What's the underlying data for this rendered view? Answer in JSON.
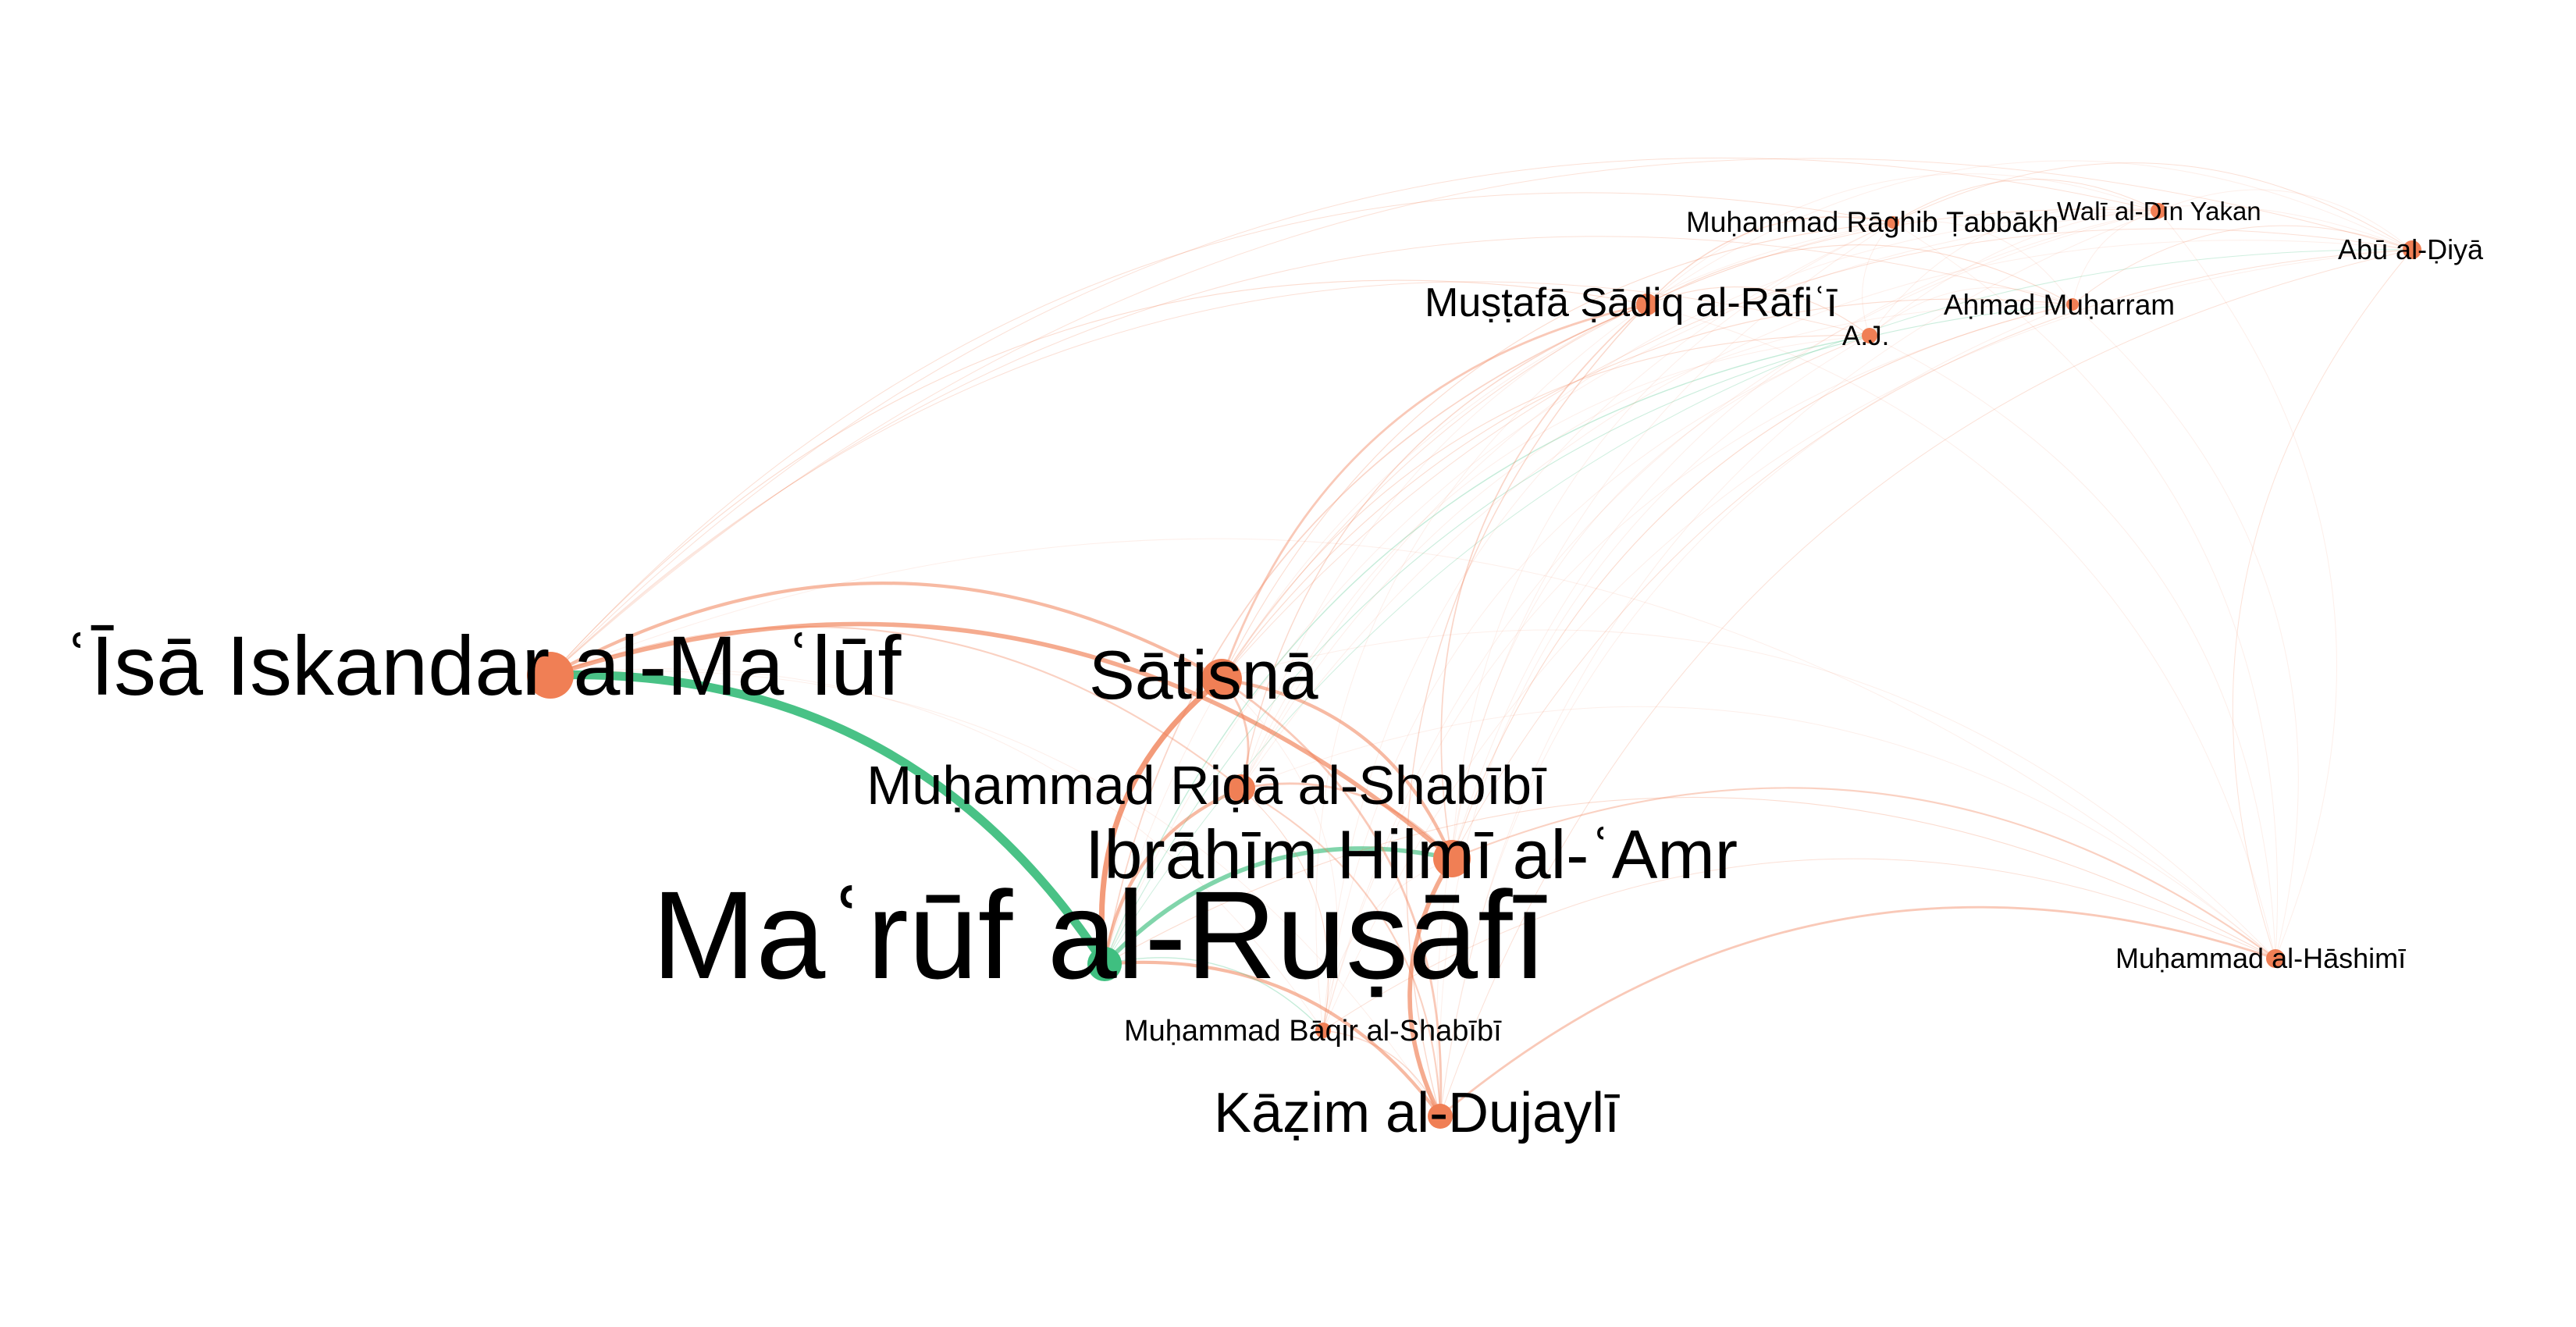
{
  "colors": {
    "background": "#ffffff",
    "primary": "#f07f55",
    "secondary": "#3fbf80",
    "label": "#000000"
  },
  "nodes": [
    {
      "id": "rusafi",
      "label": "Maʿrūf al-Ruṣāfī",
      "color": "#3fbf80",
      "weight": 10
    },
    {
      "id": "maluf",
      "label": "ʿĪsā Iskandar al-Maʿlūf",
      "color": "#f07f55",
      "weight": 6
    },
    {
      "id": "satisna",
      "label": "Sātisnā",
      "color": "#f07f55",
      "weight": 4
    },
    {
      "id": "hilmi",
      "label": "Ibrāhīm Hilmī al-ʿAmr",
      "color": "#f07f55",
      "weight": 4
    },
    {
      "id": "shabibi_r",
      "label": "Muḥammad Riḍā al-Shabībī",
      "color": "#f07f55",
      "weight": 3
    },
    {
      "id": "dujayli",
      "label": "Kāẓim al-Dujaylī",
      "color": "#f07f55",
      "weight": 3
    },
    {
      "id": "shabibi_b",
      "label": "Muḥammad Bāqir al-Shabībī",
      "color": "#f07f55",
      "weight": 1
    },
    {
      "id": "rafii",
      "label": "Muṣṭafā Ṣādiq al-Rāfiʿī",
      "color": "#f07f55",
      "weight": 2
    },
    {
      "id": "tabbakh",
      "label": "Muḥammad Rāghib Ṭabbākh",
      "color": "#f07f55",
      "weight": 1
    },
    {
      "id": "yakan",
      "label": "Walī al-Dīn Yakan",
      "color": "#f07f55",
      "weight": 1
    },
    {
      "id": "diya",
      "label": "Abū al-Ḍiyā",
      "color": "#f07f55",
      "weight": 1
    },
    {
      "id": "muharram",
      "label": "Aḥmad Muḥarram",
      "color": "#f07f55",
      "weight": 1
    },
    {
      "id": "aj",
      "label": "A.J.",
      "color": "#f07f55",
      "weight": 1
    },
    {
      "id": "hashimi",
      "label": "Muḥammad al-Hāshimī",
      "color": "#f07f55",
      "weight": 1
    }
  ],
  "edges": [
    {
      "source": "maluf",
      "target": "rusafi",
      "color": "#3fbf80",
      "weight": 8
    },
    {
      "source": "maluf",
      "target": "hilmi",
      "color": "#f07f55",
      "weight": 4
    },
    {
      "source": "maluf",
      "target": "satisna",
      "color": "#f07f55",
      "weight": 3
    },
    {
      "source": "maluf",
      "target": "shabibi_r",
      "color": "#f07f55",
      "weight": 1.5
    },
    {
      "source": "maluf",
      "target": "rafii",
      "color": "#f07f55",
      "weight": 0.8
    },
    {
      "source": "maluf",
      "target": "tabbakh",
      "color": "#f07f55",
      "weight": 0.6
    },
    {
      "source": "maluf",
      "target": "yakan",
      "color": "#f07f55",
      "weight": 0.5
    },
    {
      "source": "maluf",
      "target": "muharram",
      "color": "#f07f55",
      "weight": 0.5
    },
    {
      "source": "maluf",
      "target": "aj",
      "color": "#f07f55",
      "weight": 0.5
    },
    {
      "source": "maluf",
      "target": "diya",
      "color": "#f07f55",
      "weight": 0.4
    },
    {
      "source": "rusafi",
      "target": "satisna",
      "color": "#f07f55",
      "weight": 5
    },
    {
      "source": "rusafi",
      "target": "shabibi_r",
      "color": "#f07f55",
      "weight": 3
    },
    {
      "source": "rusafi",
      "target": "hilmi",
      "color": "#3fbf80",
      "weight": 4
    },
    {
      "source": "rusafi",
      "target": "dujayli",
      "color": "#f07f55",
      "weight": 3
    },
    {
      "source": "rusafi",
      "target": "shabibi_b",
      "color": "#3fbf80",
      "weight": 1
    },
    {
      "source": "rusafi",
      "target": "aj",
      "color": "#3fbf80",
      "weight": 1
    },
    {
      "source": "rusafi",
      "target": "muharram",
      "color": "#3fbf80",
      "weight": 0.8
    },
    {
      "source": "rusafi",
      "target": "diya",
      "color": "#3fbf80",
      "weight": 0.6
    },
    {
      "source": "rusafi",
      "target": "rafii",
      "color": "#f07f55",
      "weight": 1.2
    },
    {
      "source": "rusafi",
      "target": "hashimi",
      "color": "#f07f55",
      "weight": 0.8
    },
    {
      "source": "satisna",
      "target": "hilmi",
      "color": "#f07f55",
      "weight": 3
    },
    {
      "source": "satisna",
      "target": "shabibi_r",
      "color": "#f07f55",
      "weight": 2
    },
    {
      "source": "satisna",
      "target": "dujayli",
      "color": "#f07f55",
      "weight": 2
    },
    {
      "source": "satisna",
      "target": "rafii",
      "color": "#f07f55",
      "weight": 2
    },
    {
      "source": "satisna",
      "target": "tabbakh",
      "color": "#f07f55",
      "weight": 0.8
    },
    {
      "source": "satisna",
      "target": "muharram",
      "color": "#f07f55",
      "weight": 0.8
    },
    {
      "source": "satisna",
      "target": "aj",
      "color": "#f07f55",
      "weight": 0.8
    },
    {
      "source": "satisna",
      "target": "diya",
      "color": "#f07f55",
      "weight": 0.5
    },
    {
      "source": "satisna",
      "target": "yakan",
      "color": "#f07f55",
      "weight": 0.5
    },
    {
      "source": "hilmi",
      "target": "dujayli",
      "color": "#f07f55",
      "weight": 4
    },
    {
      "source": "hilmi",
      "target": "shabibi_r",
      "color": "#f07f55",
      "weight": 2
    },
    {
      "source": "hilmi",
      "target": "rafii",
      "color": "#f07f55",
      "weight": 1.2
    },
    {
      "source": "hilmi",
      "target": "hashimi",
      "color": "#f07f55",
      "weight": 1.5
    },
    {
      "source": "hilmi",
      "target": "muharram",
      "color": "#f07f55",
      "weight": 0.8
    },
    {
      "source": "hilmi",
      "target": "diya",
      "color": "#f07f55",
      "weight": 0.5
    },
    {
      "source": "shabibi_r",
      "target": "dujayli",
      "color": "#f07f55",
      "weight": 1.5
    },
    {
      "source": "shabibi_r",
      "target": "rafii",
      "color": "#f07f55",
      "weight": 1
    },
    {
      "source": "shabibi_r",
      "target": "shabibi_b",
      "color": "#f07f55",
      "weight": 0.8
    },
    {
      "source": "dujayli",
      "target": "hashimi",
      "color": "#f07f55",
      "weight": 2
    },
    {
      "source": "dujayli",
      "target": "shabibi_b",
      "color": "#f07f55",
      "weight": 1
    },
    {
      "source": "dujayli",
      "target": "rafii",
      "color": "#f07f55",
      "weight": 1
    },
    {
      "source": "dujayli",
      "target": "diya",
      "color": "#f07f55",
      "weight": 0.5
    },
    {
      "source": "rafii",
      "target": "tabbakh",
      "color": "#f07f55",
      "weight": 1
    },
    {
      "source": "rafii",
      "target": "muharram",
      "color": "#f07f55",
      "weight": 0.8
    },
    {
      "source": "rafii",
      "target": "aj",
      "color": "#f07f55",
      "weight": 0.8
    },
    {
      "source": "tabbakh",
      "target": "yakan",
      "color": "#f07f55",
      "weight": 0.6
    },
    {
      "source": "tabbakh",
      "target": "diya",
      "color": "#f07f55",
      "weight": 0.5
    },
    {
      "source": "muharram",
      "target": "diya",
      "color": "#f07f55",
      "weight": 0.5
    },
    {
      "source": "hashimi",
      "target": "diya",
      "color": "#f07f55",
      "weight": 0.4
    },
    {
      "source": "shabibi_b",
      "target": "hashimi",
      "color": "#f07f55",
      "weight": 0.5
    }
  ]
}
